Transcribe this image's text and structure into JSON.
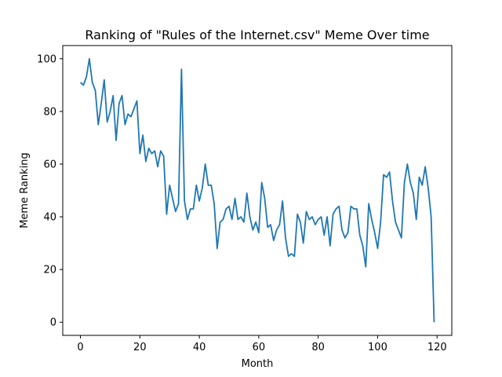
{
  "chart_data": {
    "type": "line",
    "title": "Ranking of \"Rules of the Internet.csv\" Meme Over time",
    "xlabel": "Month",
    "ylabel": "Meme Ranking",
    "xlim": [
      -5.95,
      124.95
    ],
    "ylim": [
      -5,
      105
    ],
    "xticks": [
      0,
      20,
      40,
      60,
      80,
      100,
      120
    ],
    "yticks": [
      0,
      20,
      40,
      60,
      80,
      100
    ],
    "grid": false,
    "line_color": "#1f77b4",
    "series": [
      {
        "x": [
          0,
          1,
          2,
          3,
          4,
          5,
          6,
          7,
          8,
          9,
          10,
          11,
          12,
          13,
          14,
          15,
          16,
          17,
          18,
          19,
          20,
          21,
          22,
          23,
          24,
          25,
          26,
          27,
          28,
          29,
          30,
          31,
          32,
          33,
          34,
          35,
          36,
          37,
          38,
          39,
          40,
          41,
          42,
          43,
          44,
          45,
          46,
          47,
          48,
          49,
          50,
          51,
          52,
          53,
          54,
          55,
          56,
          57,
          58,
          59,
          60,
          61,
          62,
          63,
          64,
          65,
          66,
          67,
          68,
          69,
          70,
          71,
          72,
          73,
          74,
          75,
          76,
          77,
          78,
          79,
          80,
          81,
          82,
          83,
          84,
          85,
          86,
          87,
          88,
          89,
          90,
          91,
          92,
          93,
          94,
          95,
          96,
          97,
          98,
          99,
          100,
          101,
          102,
          103,
          104,
          105,
          106,
          107,
          108,
          109,
          110,
          111,
          112,
          113,
          114,
          115,
          116,
          117,
          118,
          119
        ],
        "values": [
          91,
          90,
          93,
          100,
          91,
          88,
          75,
          83,
          92,
          76,
          80,
          86,
          69,
          83,
          86,
          75,
          79,
          78,
          81,
          84,
          64,
          71,
          61,
          66,
          64,
          65,
          59,
          65,
          63,
          41,
          52,
          47,
          42,
          45,
          96,
          46,
          39,
          43,
          43,
          52,
          46,
          51,
          60,
          52,
          52,
          45,
          28,
          38,
          39,
          43,
          44,
          39,
          47,
          39,
          40,
          38,
          49,
          40,
          35,
          38,
          34,
          53,
          47,
          36,
          37,
          31,
          35,
          37,
          46,
          32,
          25,
          26,
          25,
          41,
          38,
          30,
          42,
          39,
          40,
          37,
          39,
          40,
          33,
          40,
          29,
          41,
          43,
          44,
          35,
          32,
          34,
          44,
          43,
          43,
          33,
          29,
          21,
          45,
          39,
          34,
          28,
          38,
          56,
          55,
          57,
          46,
          38,
          35,
          32,
          53,
          60,
          53,
          49,
          39,
          55,
          52,
          59,
          51,
          40,
          0
        ]
      }
    ]
  }
}
